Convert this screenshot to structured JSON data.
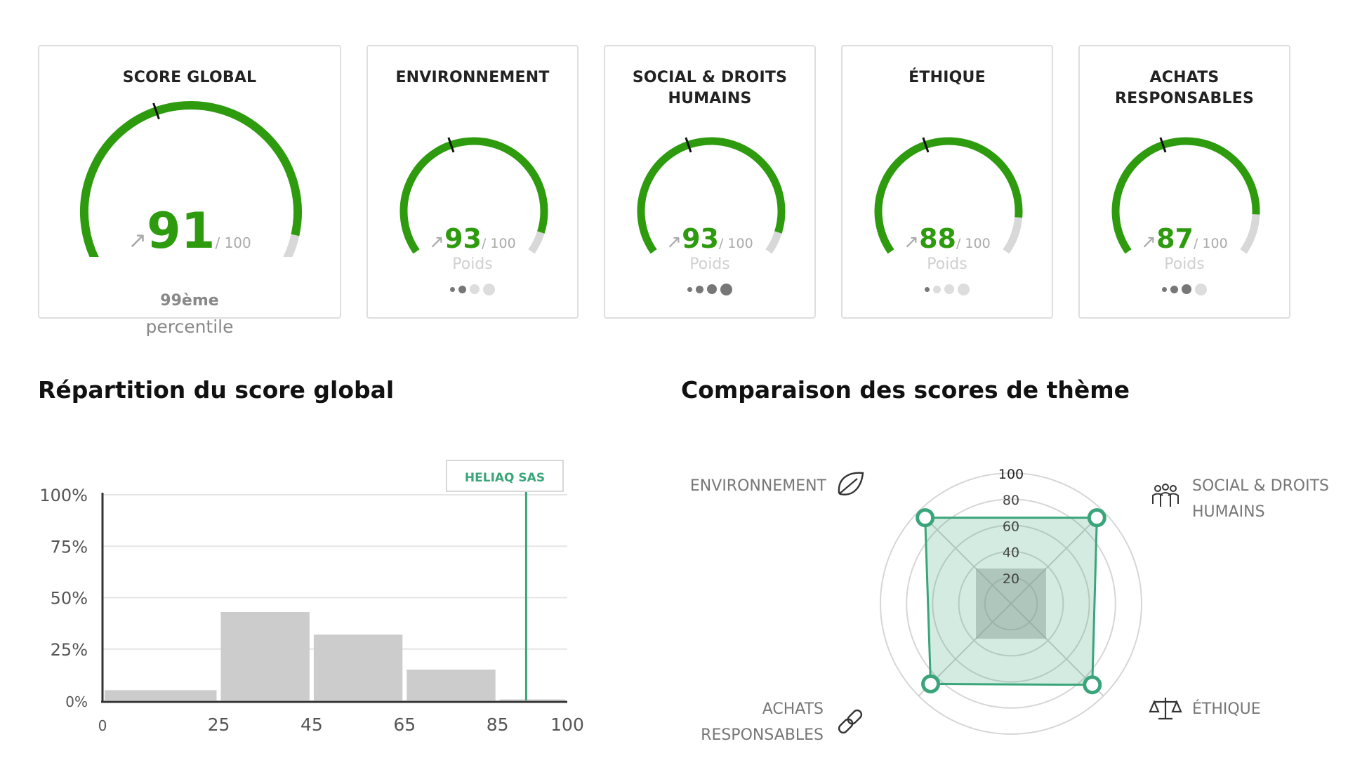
{
  "cards": [
    {
      "title": "SCORE GLOBAL",
      "score": "91",
      "out_of": "/ 100",
      "trend_icon": "arrow-up-right-icon",
      "value": 91,
      "percentile_rank": "99",
      "percentile_suffix": "ème",
      "percentile_label": "percentile"
    },
    {
      "title": "ENVIRONNEMENT",
      "score": "93",
      "out_of": "/ 100",
      "trend_icon": "arrow-up-right-icon",
      "value": 93,
      "weight_label": "Poids",
      "weight_level": 2
    },
    {
      "title_line1": "SOCIAL & DROITS",
      "title_line2": "HUMAINS",
      "score": "93",
      "out_of": "/ 100",
      "trend_icon": "arrow-up-right-icon",
      "value": 93,
      "weight_label": "Poids",
      "weight_level": 4
    },
    {
      "title": "ÉTHIQUE",
      "score": "88",
      "out_of": "/ 100",
      "trend_icon": "arrow-up-right-icon",
      "value": 88,
      "weight_label": "Poids",
      "weight_level": 1
    },
    {
      "title": "ACHATS RESPONSABLES",
      "score": "87",
      "out_of": "/ 100",
      "trend_icon": "arrow-up-right-icon",
      "value": 87,
      "weight_label": "Poids",
      "weight_level": 3
    }
  ],
  "sections": {
    "distribution_title": "Répartition du score global",
    "comparison_title": "Comparaison des scores de thème"
  },
  "colors": {
    "score_green": "#2e9b0f",
    "gauge_grey": "#d8d8d8",
    "radar_teal": "#3aa57a",
    "bar_grey": "#cccccc"
  },
  "chart_data": [
    {
      "type": "bar",
      "title": "Répartition du score global",
      "bins": [
        [
          0,
          25
        ],
        [
          25,
          45
        ],
        [
          45,
          65
        ],
        [
          65,
          85
        ],
        [
          85,
          100
        ]
      ],
      "values": [
        5,
        43,
        32,
        15,
        0.5
      ],
      "x_ticks": [
        "0",
        "25",
        "45",
        "65",
        "85",
        "100"
      ],
      "y_ticks": [
        "0%",
        "25%",
        "50%",
        "75%",
        "100%"
      ],
      "ylim": [
        0,
        100
      ],
      "marker": {
        "label": "HELIAQ SAS",
        "x": 91
      },
      "grid": true
    },
    {
      "type": "radar",
      "title": "Comparaison des scores de thème",
      "axes": [
        {
          "label_line1": "ENVIRONNEMENT",
          "label_line2": "",
          "icon": "leaf-icon"
        },
        {
          "label_line1": "SOCIAL & DROITS",
          "label_line2": "HUMAINS",
          "icon": "people-icon"
        },
        {
          "label_line1": "ÉTHIQUE",
          "label_line2": "",
          "icon": "scales-icon"
        },
        {
          "label_line1": "ACHATS",
          "label_line2": "RESPONSABLES",
          "icon": "chain-link-icon"
        }
      ],
      "r_ticks": [
        "20",
        "40",
        "60",
        "80",
        "100"
      ],
      "rmax": 100,
      "series": [
        {
          "values": [
            93,
            93,
            88,
            87
          ],
          "highlighted": true
        },
        {
          "values": [
            38,
            38,
            38,
            38
          ],
          "highlighted": false
        }
      ]
    }
  ]
}
